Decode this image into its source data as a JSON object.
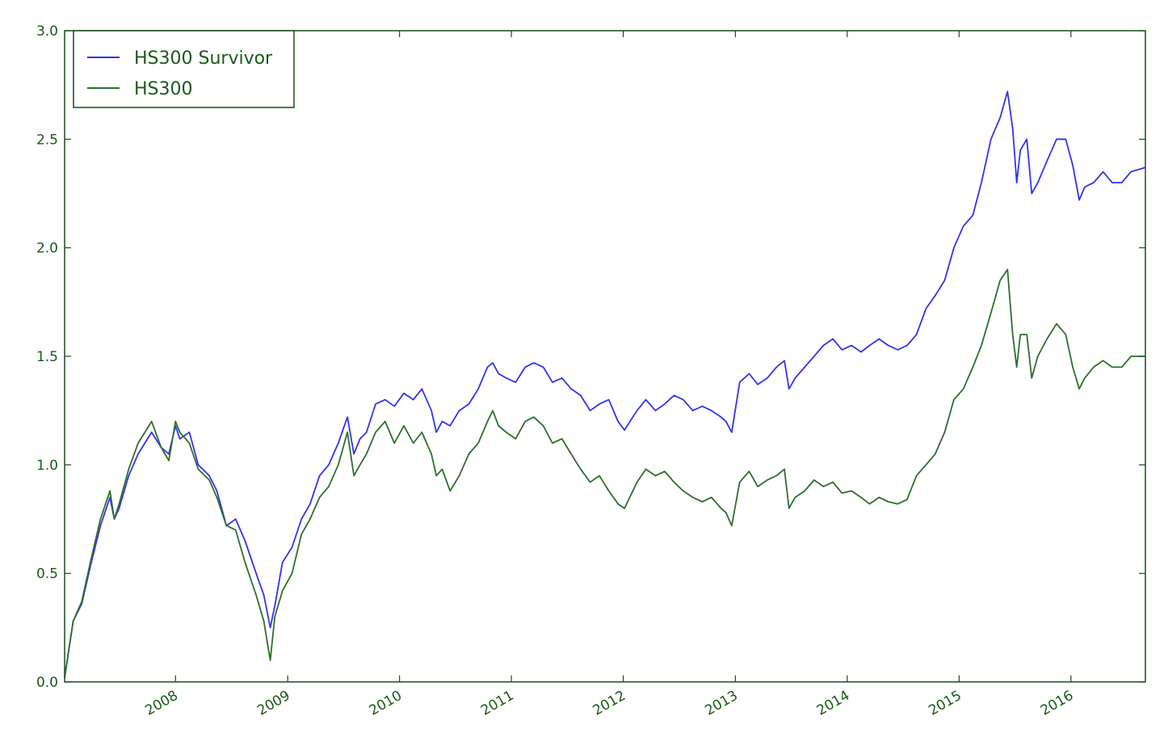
{
  "chart_data": {
    "type": "line",
    "title": "",
    "xlabel": "",
    "ylabel": "",
    "xlim": [
      "2007-01-04",
      "2016-08-31"
    ],
    "ylim": [
      0,
      3.0
    ],
    "y_ticks": [
      0.0,
      0.5,
      1.0,
      1.5,
      2.0,
      2.5,
      3.0
    ],
    "y_tick_labels": [
      "0.0",
      "0.5",
      "1.0",
      "1.5",
      "2.0",
      "2.5",
      "3.0"
    ],
    "x_ticks": [
      "2008-01-01",
      "2009-01-01",
      "2010-01-01",
      "2011-01-01",
      "2012-01-01",
      "2013-01-01",
      "2014-01-01",
      "2015-01-01",
      "2016-01-01"
    ],
    "x_tick_labels": [
      "2008",
      "2009",
      "2010",
      "2011",
      "2012",
      "2013",
      "2014",
      "2015",
      "2016"
    ],
    "grid": false,
    "legend_position": "upper-left",
    "colors": {
      "axes": "#1a4a1a",
      "tick_text": "#1a5a1a"
    },
    "series": [
      {
        "name": "HS300 Survivor",
        "color": "#3333ee",
        "x": [
          "2007-01-04",
          "2007-02-01",
          "2007-03-01",
          "2007-04-01",
          "2007-05-01",
          "2007-06-01",
          "2007-06-15",
          "2007-07-01",
          "2007-08-01",
          "2007-09-01",
          "2007-10-15",
          "2007-11-15",
          "2007-12-10",
          "2008-01-01",
          "2008-01-15",
          "2008-02-15",
          "2008-03-15",
          "2008-04-20",
          "2008-05-15",
          "2008-06-15",
          "2008-07-15",
          "2008-08-15",
          "2008-09-20",
          "2008-10-15",
          "2008-11-05",
          "2008-11-20",
          "2008-12-15",
          "2009-01-15",
          "2009-02-15",
          "2009-03-15",
          "2009-04-15",
          "2009-05-15",
          "2009-06-15",
          "2009-07-15",
          "2009-08-05",
          "2009-08-25",
          "2009-09-15",
          "2009-10-15",
          "2009-11-15",
          "2009-12-15",
          "2010-01-15",
          "2010-02-15",
          "2010-03-15",
          "2010-04-15",
          "2010-05-01",
          "2010-05-20",
          "2010-06-15",
          "2010-07-15",
          "2010-08-15",
          "2010-09-15",
          "2010-10-15",
          "2010-11-01",
          "2010-11-20",
          "2010-12-15",
          "2011-01-15",
          "2011-02-15",
          "2011-03-15",
          "2011-04-15",
          "2011-05-15",
          "2011-06-15",
          "2011-07-15",
          "2011-08-15",
          "2011-09-15",
          "2011-10-15",
          "2011-11-15",
          "2011-12-15",
          "2012-01-05",
          "2012-02-15",
          "2012-03-15",
          "2012-04-15",
          "2012-05-15",
          "2012-06-15",
          "2012-07-15",
          "2012-08-15",
          "2012-09-15",
          "2012-10-15",
          "2012-11-15",
          "2012-12-01",
          "2012-12-20",
          "2013-01-15",
          "2013-02-15",
          "2013-03-15",
          "2013-04-15",
          "2013-05-15",
          "2013-06-10",
          "2013-06-25",
          "2013-07-15",
          "2013-08-15",
          "2013-09-15",
          "2013-10-15",
          "2013-11-15",
          "2013-12-15",
          "2014-01-15",
          "2014-02-15",
          "2014-03-15",
          "2014-04-15",
          "2014-05-15",
          "2014-06-15",
          "2014-07-15",
          "2014-08-15",
          "2014-09-15",
          "2014-10-15",
          "2014-11-15",
          "2014-12-15",
          "2015-01-15",
          "2015-02-15",
          "2015-03-15",
          "2015-04-15",
          "2015-05-15",
          "2015-06-08",
          "2015-06-25",
          "2015-07-08",
          "2015-07-20",
          "2015-08-10",
          "2015-08-26",
          "2015-09-15",
          "2015-10-15",
          "2015-11-15",
          "2015-12-15",
          "2016-01-07",
          "2016-01-28",
          "2016-02-15",
          "2016-03-15",
          "2016-04-15",
          "2016-05-15",
          "2016-06-15",
          "2016-07-15",
          "2016-08-31"
        ],
        "y": [
          0.02,
          0.28,
          0.36,
          0.55,
          0.72,
          0.85,
          0.75,
          0.8,
          0.95,
          1.05,
          1.15,
          1.08,
          1.05,
          1.18,
          1.12,
          1.15,
          1.0,
          0.95,
          0.88,
          0.72,
          0.75,
          0.65,
          0.5,
          0.4,
          0.25,
          0.35,
          0.55,
          0.62,
          0.75,
          0.82,
          0.95,
          1.0,
          1.1,
          1.22,
          1.05,
          1.12,
          1.15,
          1.28,
          1.3,
          1.27,
          1.33,
          1.3,
          1.35,
          1.25,
          1.15,
          1.2,
          1.18,
          1.25,
          1.28,
          1.35,
          1.45,
          1.47,
          1.42,
          1.4,
          1.38,
          1.45,
          1.47,
          1.45,
          1.38,
          1.4,
          1.35,
          1.32,
          1.25,
          1.28,
          1.3,
          1.2,
          1.16,
          1.25,
          1.3,
          1.25,
          1.28,
          1.32,
          1.3,
          1.25,
          1.27,
          1.25,
          1.22,
          1.2,
          1.15,
          1.38,
          1.42,
          1.37,
          1.4,
          1.45,
          1.48,
          1.35,
          1.4,
          1.45,
          1.5,
          1.55,
          1.58,
          1.53,
          1.55,
          1.52,
          1.55,
          1.58,
          1.55,
          1.53,
          1.55,
          1.6,
          1.72,
          1.78,
          1.85,
          2.0,
          2.1,
          2.15,
          2.3,
          2.5,
          2.6,
          2.72,
          2.55,
          2.3,
          2.45,
          2.5,
          2.25,
          2.3,
          2.4,
          2.5,
          2.5,
          2.38,
          2.22,
          2.28,
          2.3,
          2.35,
          2.3,
          2.3,
          2.35,
          2.37
        ]
      },
      {
        "name": "HS300",
        "color": "#2d6e2d",
        "x": [
          "2007-01-04",
          "2007-02-01",
          "2007-03-01",
          "2007-04-01",
          "2007-05-01",
          "2007-06-01",
          "2007-06-15",
          "2007-07-01",
          "2007-08-01",
          "2007-09-01",
          "2007-10-15",
          "2007-11-15",
          "2007-12-10",
          "2008-01-01",
          "2008-01-15",
          "2008-02-15",
          "2008-03-15",
          "2008-04-20",
          "2008-05-15",
          "2008-06-15",
          "2008-07-15",
          "2008-08-15",
          "2008-09-20",
          "2008-10-15",
          "2008-11-05",
          "2008-11-20",
          "2008-12-15",
          "2009-01-15",
          "2009-02-15",
          "2009-03-15",
          "2009-04-15",
          "2009-05-15",
          "2009-06-15",
          "2009-07-15",
          "2009-08-05",
          "2009-08-25",
          "2009-09-15",
          "2009-10-15",
          "2009-11-15",
          "2009-12-15",
          "2010-01-15",
          "2010-02-15",
          "2010-03-15",
          "2010-04-15",
          "2010-05-01",
          "2010-05-20",
          "2010-06-15",
          "2010-07-15",
          "2010-08-15",
          "2010-09-15",
          "2010-10-15",
          "2010-11-01",
          "2010-11-20",
          "2010-12-15",
          "2011-01-15",
          "2011-02-15",
          "2011-03-15",
          "2011-04-15",
          "2011-05-15",
          "2011-06-15",
          "2011-07-15",
          "2011-08-15",
          "2011-09-15",
          "2011-10-15",
          "2011-11-15",
          "2011-12-15",
          "2012-01-05",
          "2012-02-15",
          "2012-03-15",
          "2012-04-15",
          "2012-05-15",
          "2012-06-15",
          "2012-07-15",
          "2012-08-15",
          "2012-09-15",
          "2012-10-15",
          "2012-11-15",
          "2012-12-01",
          "2012-12-20",
          "2013-01-15",
          "2013-02-15",
          "2013-03-15",
          "2013-04-15",
          "2013-05-15",
          "2013-06-10",
          "2013-06-25",
          "2013-07-15",
          "2013-08-15",
          "2013-09-15",
          "2013-10-15",
          "2013-11-15",
          "2013-12-15",
          "2014-01-15",
          "2014-02-15",
          "2014-03-15",
          "2014-04-15",
          "2014-05-15",
          "2014-06-15",
          "2014-07-15",
          "2014-08-15",
          "2014-09-15",
          "2014-10-15",
          "2014-11-15",
          "2014-12-15",
          "2015-01-15",
          "2015-02-15",
          "2015-03-15",
          "2015-04-15",
          "2015-05-15",
          "2015-06-08",
          "2015-06-25",
          "2015-07-08",
          "2015-07-20",
          "2015-08-10",
          "2015-08-26",
          "2015-09-15",
          "2015-10-15",
          "2015-11-15",
          "2015-12-15",
          "2016-01-07",
          "2016-01-28",
          "2016-02-15",
          "2016-03-15",
          "2016-04-15",
          "2016-05-15",
          "2016-06-15",
          "2016-07-15",
          "2016-08-31"
        ],
        "y": [
          0.02,
          0.28,
          0.37,
          0.57,
          0.75,
          0.88,
          0.75,
          0.82,
          0.98,
          1.1,
          1.2,
          1.08,
          1.02,
          1.2,
          1.15,
          1.1,
          0.98,
          0.93,
          0.85,
          0.72,
          0.7,
          0.55,
          0.4,
          0.28,
          0.1,
          0.3,
          0.42,
          0.5,
          0.68,
          0.75,
          0.85,
          0.9,
          1.0,
          1.15,
          0.95,
          1.0,
          1.05,
          1.15,
          1.2,
          1.1,
          1.18,
          1.1,
          1.15,
          1.05,
          0.95,
          0.98,
          0.88,
          0.95,
          1.05,
          1.1,
          1.2,
          1.25,
          1.18,
          1.15,
          1.12,
          1.2,
          1.22,
          1.18,
          1.1,
          1.12,
          1.05,
          0.98,
          0.92,
          0.95,
          0.88,
          0.82,
          0.8,
          0.92,
          0.98,
          0.95,
          0.97,
          0.92,
          0.88,
          0.85,
          0.83,
          0.85,
          0.8,
          0.78,
          0.72,
          0.92,
          0.97,
          0.9,
          0.93,
          0.95,
          0.98,
          0.8,
          0.85,
          0.88,
          0.93,
          0.9,
          0.92,
          0.87,
          0.88,
          0.85,
          0.82,
          0.85,
          0.83,
          0.82,
          0.84,
          0.95,
          1.0,
          1.05,
          1.15,
          1.3,
          1.35,
          1.45,
          1.55,
          1.7,
          1.85,
          1.9,
          1.6,
          1.45,
          1.6,
          1.6,
          1.4,
          1.5,
          1.58,
          1.65,
          1.6,
          1.45,
          1.35,
          1.4,
          1.45,
          1.48,
          1.45,
          1.45,
          1.5,
          1.5
        ]
      }
    ]
  }
}
